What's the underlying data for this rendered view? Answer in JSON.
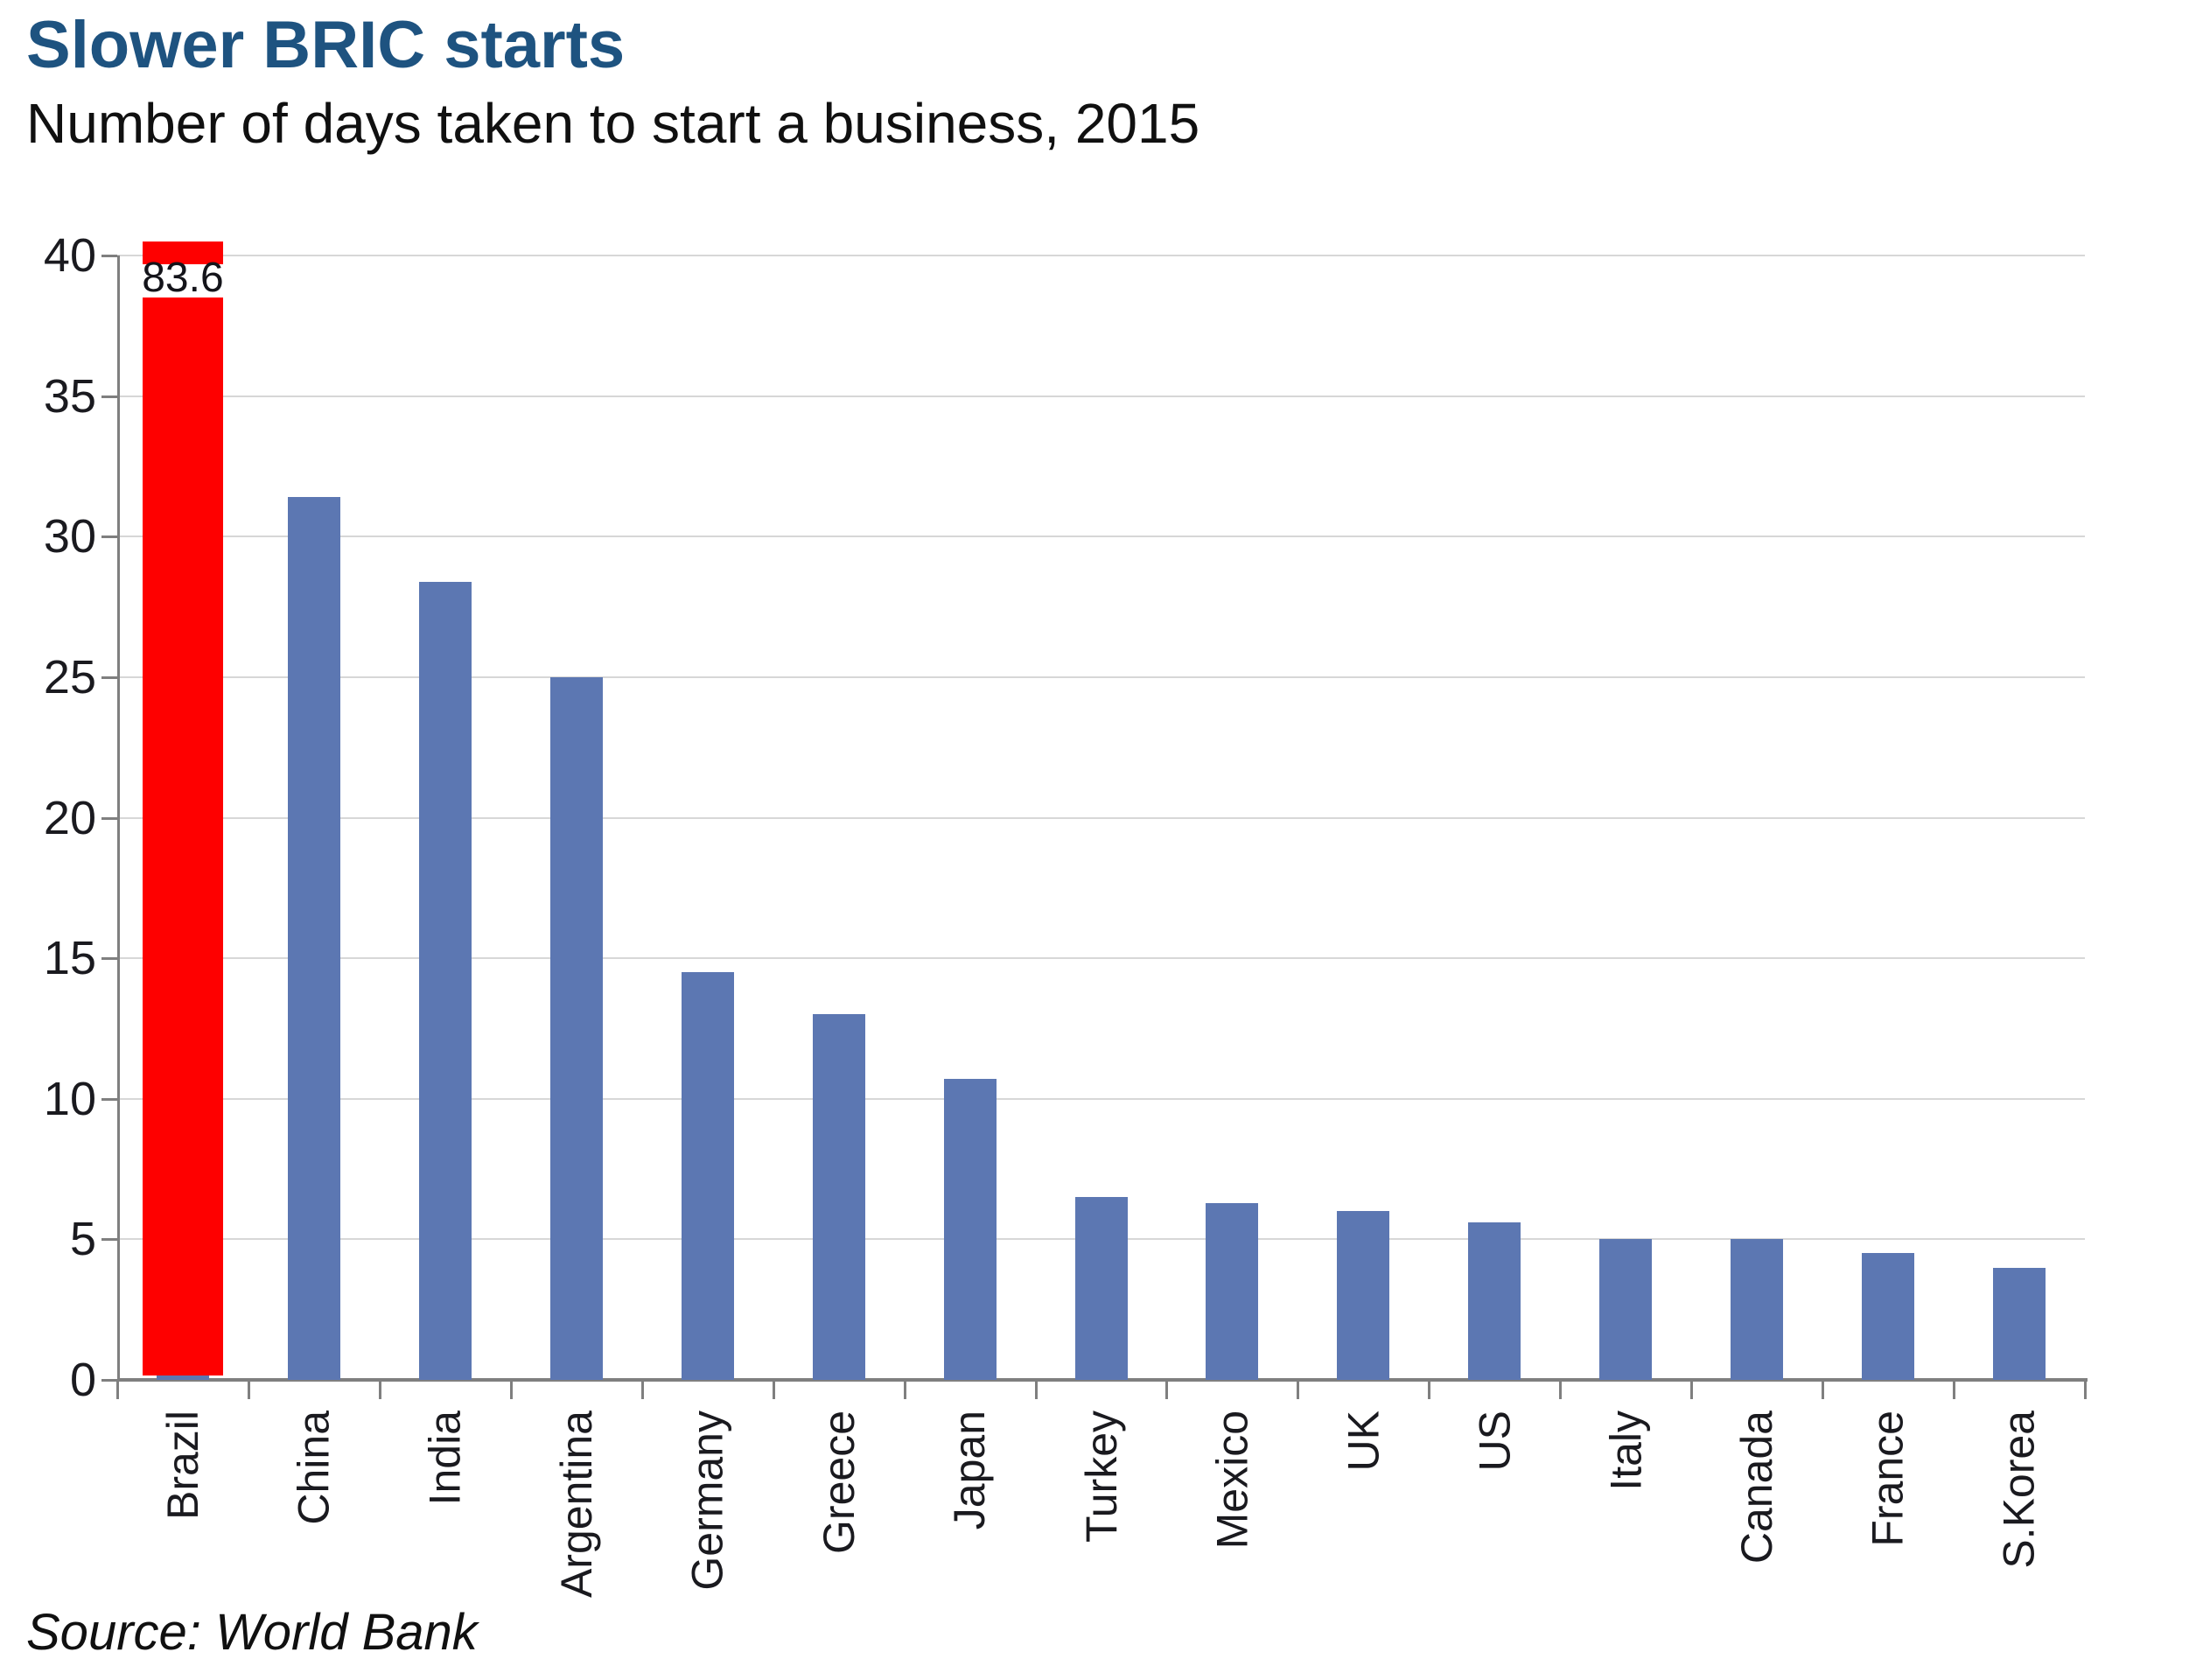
{
  "header": {
    "title": "Slower BRIC starts",
    "subtitle": "Number of days taken to start a business, 2015"
  },
  "footer": {
    "source": "Source: World Bank"
  },
  "colors": {
    "title": "#1e5380",
    "bar": "#5c77b2",
    "highlight": "#fe0000",
    "axis": "#7f7f7f",
    "gridline": "#d7d7d7",
    "text": "#1a1a1f"
  },
  "chart_data": {
    "type": "bar",
    "title": "Slower BRIC starts",
    "subtitle": "Number of days taken to start a business, 2015",
    "source": "Source: World Bank",
    "categories": [
      "Brazil",
      "China",
      "India",
      "Argentina",
      "Germany",
      "Greece",
      "Japan",
      "Turkey",
      "Mexico",
      "UK",
      "US",
      "Italy",
      "Canada",
      "France",
      "S.Korea"
    ],
    "values": [
      83.6,
      31.4,
      28.4,
      25,
      14.5,
      13,
      10.7,
      6.5,
      6.3,
      6,
      5.6,
      5,
      5,
      4.5,
      4
    ],
    "data_labels": {
      "Brazil": "83.6"
    },
    "highlight_category": "Brazil",
    "clipped_categories": [
      "Brazil"
    ],
    "xlabel": "",
    "ylabel": "",
    "ylim": [
      0,
      40
    ],
    "y_ticks": [
      0,
      5,
      10,
      15,
      20,
      25,
      30,
      35,
      40
    ],
    "grid": true,
    "legend": "none",
    "bar_color": "#5c77b2",
    "highlight_color": "#fe0000"
  }
}
